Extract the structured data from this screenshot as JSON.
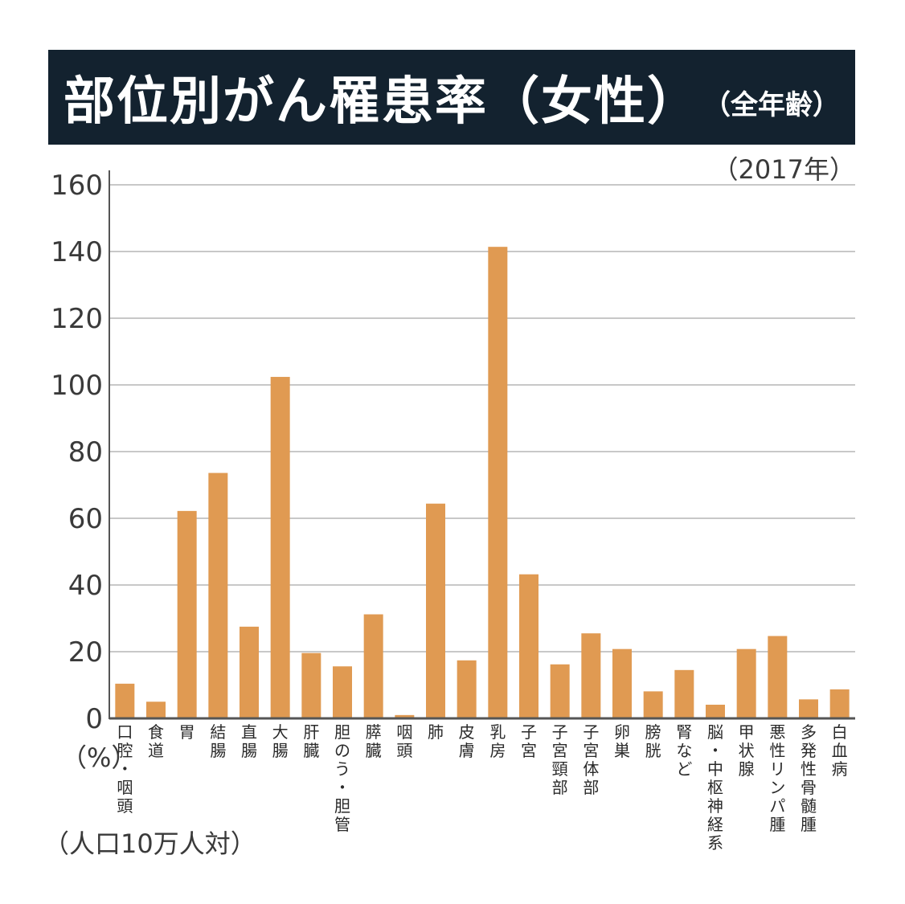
{
  "header": {
    "title": "部位別がん罹患率（女性）",
    "subtitle": "（全年齢）",
    "year": "（2017年）"
  },
  "units": {
    "percent": "（%）",
    "note": "（人口10万人対）"
  },
  "colors": {
    "bar": "#e09a52",
    "title_band": "#13222f",
    "grid": "#c8c8c8",
    "axis": "#555555"
  },
  "chart_data": {
    "type": "bar",
    "categories": [
      "口腔・咽頭",
      "食道",
      "胃",
      "結腸",
      "直腸",
      "大腸",
      "肝臓",
      "胆のう・胆管",
      "膵臓",
      "咽頭",
      "肺",
      "皮膚",
      "乳房",
      "子宮",
      "子宮頸部",
      "子宮体部",
      "卵巣",
      "膀胱",
      "腎など",
      "脳・中枢神経系",
      "甲状腺",
      "悪性リンパ腫",
      "多発性骨髄腫",
      "白血病"
    ],
    "values": [
      10.4,
      5.0,
      62.2,
      73.6,
      27.5,
      102.4,
      19.6,
      15.6,
      31.2,
      1.0,
      64.4,
      17.4,
      141.4,
      43.2,
      16.2,
      25.5,
      20.8,
      8.1,
      14.5,
      4.1,
      20.8,
      24.7,
      5.7,
      8.7
    ],
    "ylim": [
      0,
      160
    ],
    "yticks": [
      "0",
      "20",
      "40",
      "60",
      "80",
      "100",
      "120",
      "140",
      "160"
    ],
    "grid": true
  }
}
